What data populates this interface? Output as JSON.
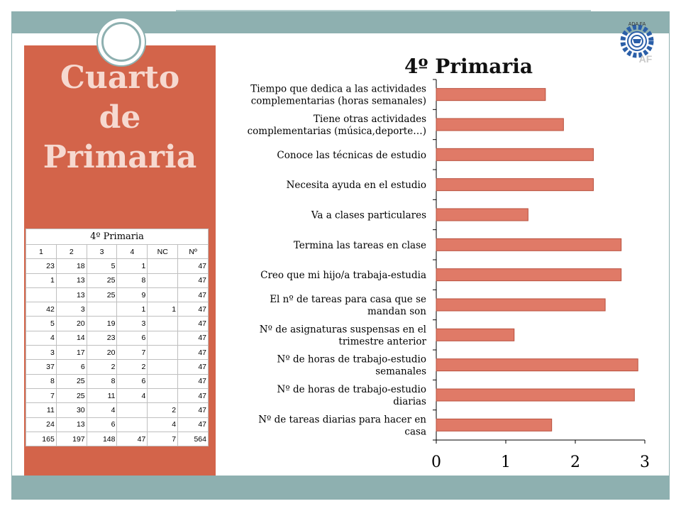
{
  "slide": {
    "title": "Cuarto\nde\nPrimaria",
    "accent_color": "#d3644a",
    "band_color": "#8eb0b0"
  },
  "table": {
    "caption": "4º Primaria",
    "headers": [
      "1",
      "2",
      "3",
      "4",
      "NC",
      "Nº"
    ],
    "rows": [
      [
        "23",
        "18",
        "5",
        "1",
        "",
        "47"
      ],
      [
        "1",
        "13",
        "25",
        "8",
        "",
        "47"
      ],
      [
        "",
        "13",
        "25",
        "9",
        "",
        "47"
      ],
      [
        "42",
        "3",
        "",
        "1",
        "1",
        "47"
      ],
      [
        "5",
        "20",
        "19",
        "3",
        "",
        "47"
      ],
      [
        "4",
        "14",
        "23",
        "6",
        "",
        "47"
      ],
      [
        "3",
        "17",
        "20",
        "7",
        "",
        "47"
      ],
      [
        "37",
        "6",
        "2",
        "2",
        "",
        "47"
      ],
      [
        "8",
        "25",
        "8",
        "6",
        "",
        "47"
      ],
      [
        "7",
        "25",
        "11",
        "4",
        "",
        "47"
      ],
      [
        "11",
        "30",
        "4",
        "",
        "2",
        "47"
      ],
      [
        "24",
        "13",
        "6",
        "",
        "4",
        "47"
      ],
      [
        "165",
        "197",
        "148",
        "47",
        "7",
        "564"
      ]
    ]
  },
  "logo": {
    "icon": "gear-emblem-icon",
    "text_top": "ADA FA",
    "text_bottom": "AF"
  },
  "chart_data": {
    "type": "bar",
    "orientation": "horizontal",
    "title": "4º Primaria",
    "categories": [
      "Tiempo que dedica a las actividades complementarias (horas semanales)",
      "Tiene otras actividades complementarias (música,deporte…)",
      "Conoce las técnicas de estudio",
      "Necesita ayuda en el estudio",
      "Va a clases particulares",
      "Termina las tareas en clase",
      "Creo que mi hijo/a trabaja-estudia",
      "El nº de tareas para casa que se mandan son",
      "Nº de asignaturas suspensas en el trimestre anterior",
      "Nº de horas de trabajo-estudio semanales",
      "Nº de horas de trabajo-estudio diarias",
      "Nº de tareas diarias para hacer en casa"
    ],
    "values": [
      1.57,
      1.83,
      2.26,
      2.26,
      1.32,
      2.66,
      2.66,
      2.43,
      1.12,
      2.9,
      2.85,
      1.66
    ],
    "xlim": [
      0,
      3
    ],
    "xticks": [
      "0",
      "1",
      "2",
      "3"
    ],
    "bar_color": "#e07a67",
    "bar_edge_color": "#b8503e",
    "grid": false
  }
}
